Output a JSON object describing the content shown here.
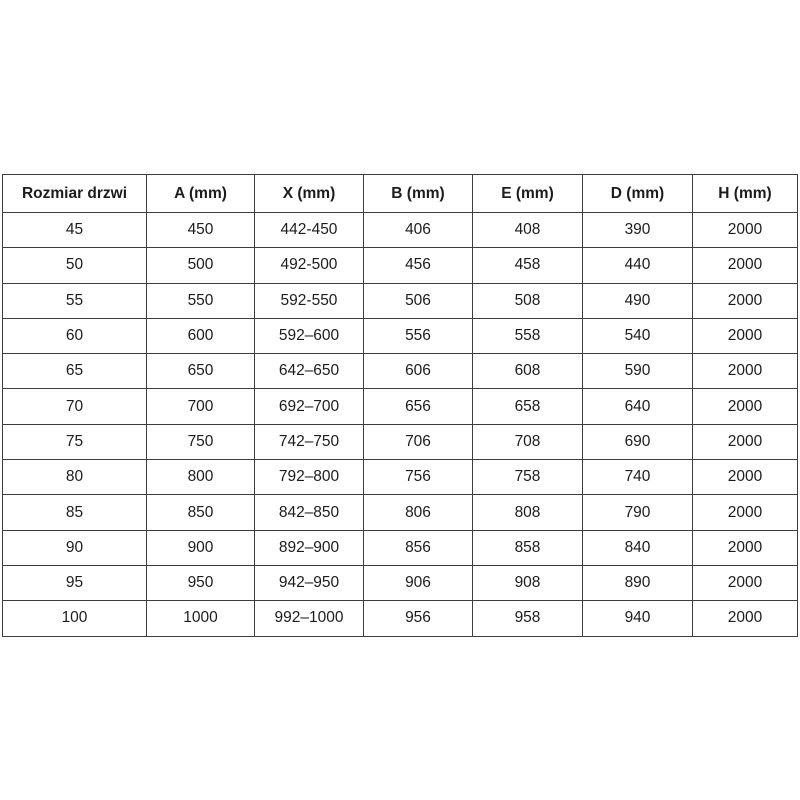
{
  "table": {
    "name": "door-size-chart",
    "headers": [
      "Rozmiar drzwi",
      "A (mm)",
      "X (mm)",
      "B (mm)",
      "E (mm)",
      "D (mm)",
      "H (mm)"
    ],
    "rows": [
      [
        "45",
        "450",
        "442-450",
        "406",
        "408",
        "390",
        "2000"
      ],
      [
        "50",
        "500",
        "492-500",
        "456",
        "458",
        "440",
        "2000"
      ],
      [
        "55",
        "550",
        "592-550",
        "506",
        "508",
        "490",
        "2000"
      ],
      [
        "60",
        "600",
        "592–600",
        "556",
        "558",
        "540",
        "2000"
      ],
      [
        "65",
        "650",
        "642–650",
        "606",
        "608",
        "590",
        "2000"
      ],
      [
        "70",
        "700",
        "692–700",
        "656",
        "658",
        "640",
        "2000"
      ],
      [
        "75",
        "750",
        "742–750",
        "706",
        "708",
        "690",
        "2000"
      ],
      [
        "80",
        "800",
        "792–800",
        "756",
        "758",
        "740",
        "2000"
      ],
      [
        "85",
        "850",
        "842–850",
        "806",
        "808",
        "790",
        "2000"
      ],
      [
        "90",
        "900",
        "892–900",
        "856",
        "858",
        "840",
        "2000"
      ],
      [
        "95",
        "950",
        "942–950",
        "906",
        "908",
        "890",
        "2000"
      ],
      [
        "100",
        "1000",
        "992–1000",
        "956",
        "958",
        "940",
        "2000"
      ]
    ],
    "colors": {
      "border": "#3d3d3d",
      "text": "#1c1c1c",
      "background": "#ffffff"
    }
  }
}
